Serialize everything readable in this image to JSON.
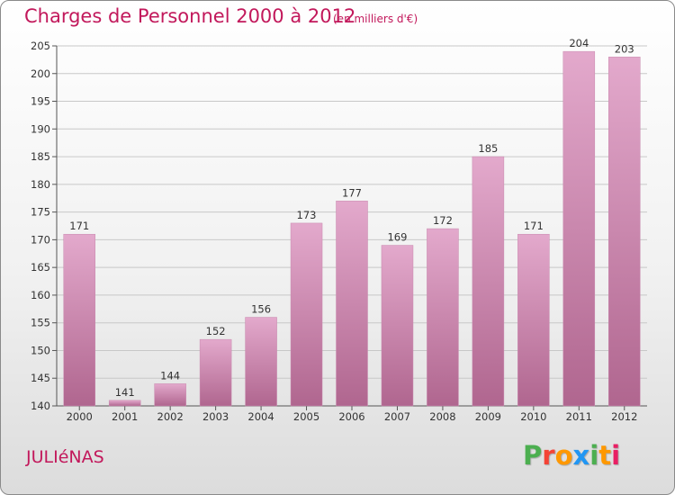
{
  "header": {
    "title": "Charges de Personnel 2000 à 2012",
    "unit": "(en milliers d'€)"
  },
  "footer": {
    "city": "JULIéNAS",
    "logo_text": "Proxiti",
    "logo_colors": [
      "#4caf50",
      "#f44336",
      "#ff9800",
      "#2196f3",
      "#4caf50",
      "#ff9800",
      "#e91e63"
    ]
  },
  "colors": {
    "accent": "#c2185b",
    "bar_light": "#e3a9cc",
    "bar_dark": "#b0668f",
    "grid": "#c8c8c8"
  },
  "chart_data": {
    "type": "bar",
    "title": "Charges de Personnel 2000 à 2012",
    "subtitle": "(en milliers d'€)",
    "xlabel": "",
    "ylabel": "",
    "categories": [
      "2000",
      "2001",
      "2002",
      "2003",
      "2004",
      "2005",
      "2006",
      "2007",
      "2008",
      "2009",
      "2010",
      "2011",
      "2012"
    ],
    "values": [
      171,
      141,
      144,
      152,
      156,
      173,
      177,
      169,
      172,
      185,
      171,
      204,
      203
    ],
    "ylim": [
      140,
      205
    ],
    "yticks": [
      140,
      145,
      150,
      155,
      160,
      165,
      170,
      175,
      180,
      185,
      190,
      195,
      200,
      205
    ],
    "grid": true
  }
}
